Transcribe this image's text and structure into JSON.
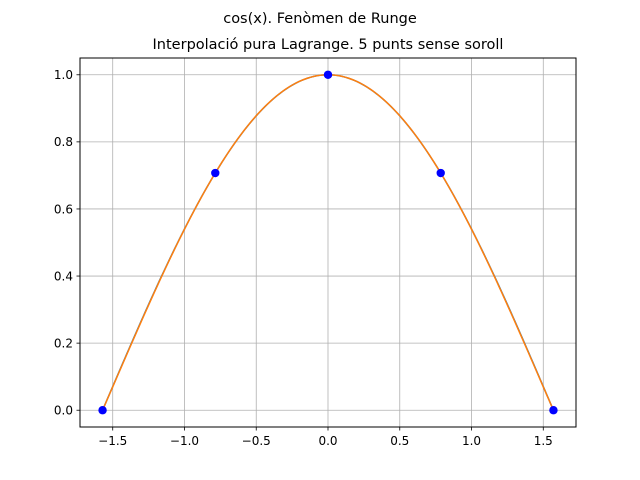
{
  "figure": {
    "suptitle": "cos(x). Fenòmen de Runge"
  },
  "chart_data": {
    "type": "line",
    "title": "Interpolació pura Lagrange. 5 punts sense soroll",
    "xlabel": "",
    "ylabel": "",
    "xlim": [
      -1.728,
      1.728
    ],
    "ylim": [
      -0.05,
      1.05
    ],
    "xticks": [
      -1.5,
      -1.0,
      -0.5,
      0.0,
      0.5,
      1.0,
      1.5
    ],
    "xtick_labels": [
      "−1.5",
      "−1.0",
      "−0.5",
      "0.0",
      "0.5",
      "1.0",
      "1.5"
    ],
    "yticks": [
      0.0,
      0.2,
      0.4,
      0.6,
      0.8,
      1.0
    ],
    "ytick_labels": [
      "0.0",
      "0.2",
      "0.4",
      "0.6",
      "0.8",
      "1.0"
    ],
    "grid": true,
    "legend": "none",
    "series": [
      {
        "kind": "line",
        "color": "#1f77b4",
        "function": "cos(x)",
        "x_range": [
          -1.5708,
          1.5708
        ]
      },
      {
        "kind": "line",
        "color": "#ff7f0e",
        "function": "lagrange_interpolant",
        "x_range": [
          -1.5708,
          1.5708
        ]
      },
      {
        "kind": "points",
        "color": "#0000ff",
        "x": [
          -1.5708,
          -0.7854,
          0.0,
          0.7854,
          1.5708
        ],
        "y": [
          0.0,
          0.7071,
          1.0,
          0.7071,
          0.0
        ]
      }
    ]
  }
}
